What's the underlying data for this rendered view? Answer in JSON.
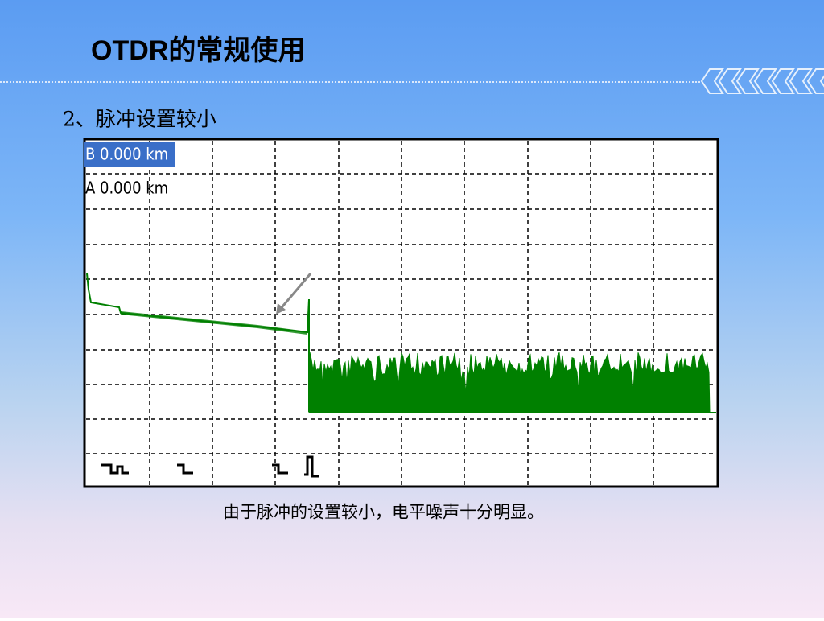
{
  "header": {
    "title": "OTDR的常规使用"
  },
  "section": {
    "heading": "2、脉冲设置较小"
  },
  "trace_panel": {
    "cursor_b": "B 0.000 km",
    "cursor_a": "A 0.000 km"
  },
  "caption": "由于脉冲的设置较小，电平噪声十分明显。"
}
